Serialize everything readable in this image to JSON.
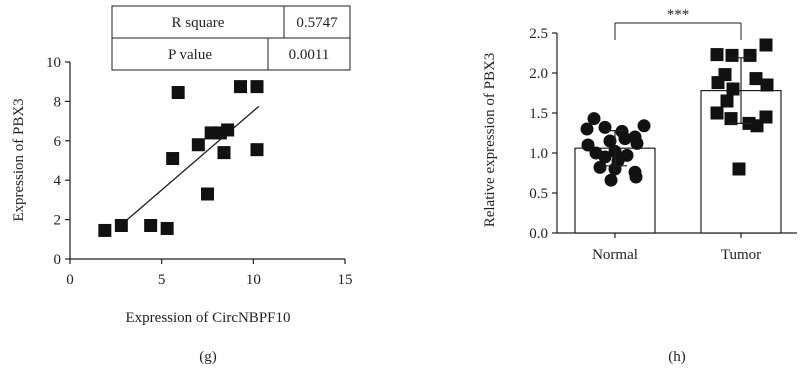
{
  "chart_data": [
    {
      "type": "scatter",
      "panel_label": "(g)",
      "xlabel": "Expression of CircNBPF10",
      "ylabel": "Expression of PBX3",
      "xlim": [
        0,
        15
      ],
      "ylim": [
        0,
        10
      ],
      "xticks": [
        "0",
        "5",
        "10",
        "15"
      ],
      "yticks": [
        "0",
        "2",
        "4",
        "6",
        "8",
        "10"
      ],
      "points": [
        [
          1.9,
          1.45
        ],
        [
          2.8,
          1.7
        ],
        [
          4.4,
          1.7
        ],
        [
          5.3,
          1.55
        ],
        [
          5.6,
          5.1
        ],
        [
          5.9,
          8.45
        ],
        [
          7.0,
          5.8
        ],
        [
          7.5,
          3.3
        ],
        [
          7.7,
          6.4
        ],
        [
          8.2,
          6.4
        ],
        [
          8.4,
          5.4
        ],
        [
          8.6,
          6.55
        ],
        [
          9.3,
          8.75
        ],
        [
          10.2,
          8.75
        ],
        [
          10.2,
          5.55
        ]
      ],
      "fit_line": [
        [
          2.5,
          1.5
        ],
        [
          10.3,
          7.75
        ]
      ],
      "stats_table": [
        {
          "label": "R square",
          "value": "0.5747"
        },
        {
          "label": "P value",
          "value": "0.0011"
        }
      ]
    },
    {
      "type": "bar",
      "panel_label": "(h)",
      "xlabel": "",
      "ylabel": "Relative expression of PBX3",
      "ylim": [
        0,
        2.5
      ],
      "yticks": [
        "0.0",
        "0.5",
        "1.0",
        "1.5",
        "2.0",
        "2.5"
      ],
      "categories": [
        "Normal",
        "Tumor"
      ],
      "values": [
        1.06,
        1.78
      ],
      "error": [
        0.22,
        0.41
      ],
      "significance": "***",
      "points": {
        "Normal": [
          1.43,
          1.3,
          1.32,
          1.27,
          1.34,
          1.18,
          1.2,
          1.15,
          1.1,
          1.12,
          1.0,
          1.02,
          0.95,
          0.97,
          0.9,
          0.82,
          0.8,
          0.76,
          0.66,
          0.7
        ],
        "Tumor": [
          2.23,
          2.22,
          2.22,
          2.35,
          1.98,
          1.93,
          1.88,
          1.85,
          1.8,
          1.65,
          1.5,
          1.45,
          1.43,
          1.37,
          1.34,
          0.8
        ]
      }
    }
  ]
}
